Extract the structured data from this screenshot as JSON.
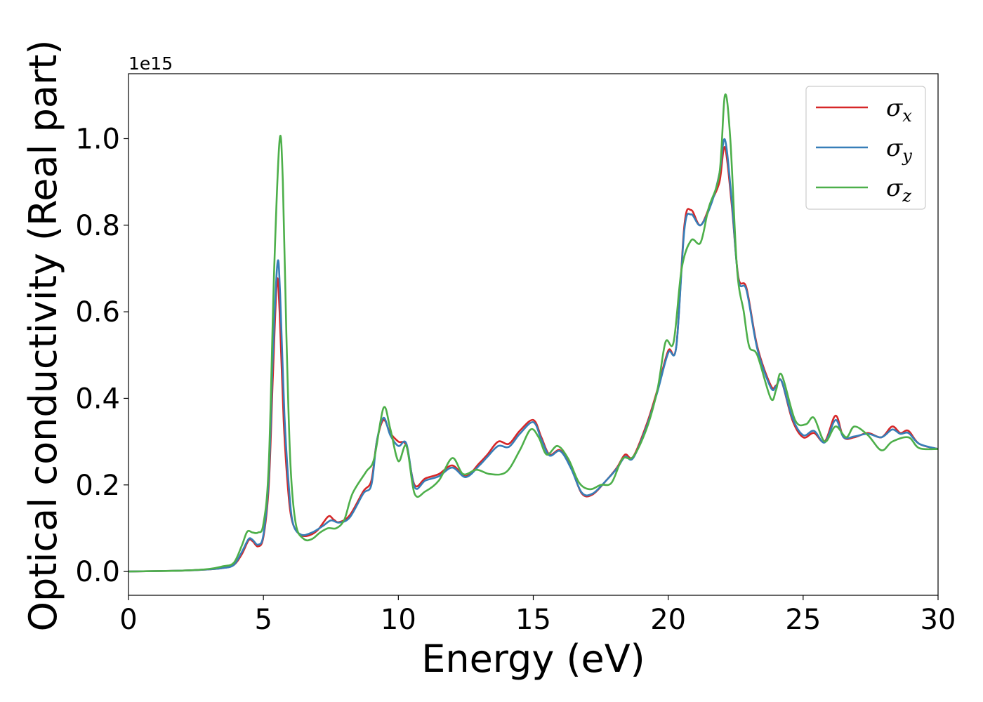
{
  "chart_data": {
    "type": "line",
    "title": "",
    "xlabel": "Energy (eV)",
    "ylabel": "Optical conductivity (Real part)",
    "y_offset_text": "1e15",
    "y_scale_factor": 1000000000000000.0,
    "xlim": [
      0,
      30
    ],
    "ylim": [
      -0.055,
      1.15
    ],
    "x_ticks": [
      0,
      5,
      10,
      15,
      20,
      25,
      30
    ],
    "x_tick_labels": [
      "0",
      "5",
      "10",
      "15",
      "20",
      "25",
      "30"
    ],
    "y_ticks": [
      0.0,
      0.2,
      0.4,
      0.6,
      0.8,
      1.0
    ],
    "y_tick_labels": [
      "0.0",
      "0.2",
      "0.4",
      "0.6",
      "0.8",
      "1.0"
    ],
    "grid": false,
    "legend_position": "top-right",
    "series": [
      {
        "name": "σx",
        "symbol": "σ",
        "subscript": "x",
        "color": "#d62728",
        "points": [
          [
            0,
            0
          ],
          [
            2.0,
            0.002
          ],
          [
            3.0,
            0.005
          ],
          [
            3.5,
            0.008
          ],
          [
            3.9,
            0.015
          ],
          [
            4.2,
            0.04
          ],
          [
            4.45,
            0.072
          ],
          [
            4.6,
            0.07
          ],
          [
            4.8,
            0.058
          ],
          [
            5.0,
            0.08
          ],
          [
            5.2,
            0.2
          ],
          [
            5.35,
            0.45
          ],
          [
            5.5,
            0.67
          ],
          [
            5.6,
            0.6
          ],
          [
            5.75,
            0.35
          ],
          [
            5.9,
            0.2
          ],
          [
            6.05,
            0.12
          ],
          [
            6.3,
            0.088
          ],
          [
            6.6,
            0.082
          ],
          [
            7.0,
            0.095
          ],
          [
            7.4,
            0.127
          ],
          [
            7.6,
            0.12
          ],
          [
            7.8,
            0.114
          ],
          [
            8.2,
            0.13
          ],
          [
            8.7,
            0.185
          ],
          [
            9.0,
            0.21
          ],
          [
            9.2,
            0.3
          ],
          [
            9.45,
            0.35
          ],
          [
            9.7,
            0.32
          ],
          [
            10.0,
            0.3
          ],
          [
            10.3,
            0.29
          ],
          [
            10.6,
            0.2
          ],
          [
            11.0,
            0.215
          ],
          [
            11.5,
            0.225
          ],
          [
            12.0,
            0.245
          ],
          [
            12.5,
            0.22
          ],
          [
            13.0,
            0.25
          ],
          [
            13.3,
            0.27
          ],
          [
            13.7,
            0.3
          ],
          [
            14.1,
            0.295
          ],
          [
            14.5,
            0.325
          ],
          [
            15.0,
            0.35
          ],
          [
            15.3,
            0.31
          ],
          [
            15.6,
            0.27
          ],
          [
            16.0,
            0.28
          ],
          [
            16.4,
            0.24
          ],
          [
            16.8,
            0.18
          ],
          [
            17.2,
            0.178
          ],
          [
            17.7,
            0.21
          ],
          [
            18.1,
            0.24
          ],
          [
            18.4,
            0.27
          ],
          [
            18.7,
            0.265
          ],
          [
            19.2,
            0.34
          ],
          [
            19.6,
            0.42
          ],
          [
            20.0,
            0.51
          ],
          [
            20.3,
            0.52
          ],
          [
            20.6,
            0.8
          ],
          [
            20.85,
            0.835
          ],
          [
            21.2,
            0.8
          ],
          [
            21.6,
            0.855
          ],
          [
            21.9,
            0.9
          ],
          [
            22.1,
            0.98
          ],
          [
            22.35,
            0.85
          ],
          [
            22.6,
            0.68
          ],
          [
            22.9,
            0.655
          ],
          [
            23.3,
            0.52
          ],
          [
            23.8,
            0.43
          ],
          [
            24.0,
            0.43
          ],
          [
            24.2,
            0.44
          ],
          [
            24.6,
            0.35
          ],
          [
            25.0,
            0.31
          ],
          [
            25.4,
            0.32
          ],
          [
            25.8,
            0.3
          ],
          [
            26.2,
            0.36
          ],
          [
            26.5,
            0.31
          ],
          [
            26.9,
            0.31
          ],
          [
            27.4,
            0.32
          ],
          [
            27.9,
            0.31
          ],
          [
            28.3,
            0.335
          ],
          [
            28.6,
            0.32
          ],
          [
            28.9,
            0.325
          ],
          [
            29.3,
            0.295
          ],
          [
            30.0,
            0.283
          ]
        ]
      },
      {
        "name": "σy",
        "symbol": "σ",
        "subscript": "y",
        "color": "#377eb8",
        "points": [
          [
            0,
            0
          ],
          [
            2.0,
            0.002
          ],
          [
            3.0,
            0.005
          ],
          [
            3.5,
            0.008
          ],
          [
            3.9,
            0.015
          ],
          [
            4.2,
            0.045
          ],
          [
            4.45,
            0.075
          ],
          [
            4.6,
            0.073
          ],
          [
            4.8,
            0.062
          ],
          [
            5.0,
            0.085
          ],
          [
            5.2,
            0.22
          ],
          [
            5.35,
            0.5
          ],
          [
            5.52,
            0.712
          ],
          [
            5.62,
            0.64
          ],
          [
            5.78,
            0.36
          ],
          [
            5.95,
            0.19
          ],
          [
            6.1,
            0.11
          ],
          [
            6.4,
            0.085
          ],
          [
            6.8,
            0.09
          ],
          [
            7.2,
            0.105
          ],
          [
            7.5,
            0.118
          ],
          [
            7.8,
            0.113
          ],
          [
            8.2,
            0.125
          ],
          [
            8.7,
            0.18
          ],
          [
            9.0,
            0.2
          ],
          [
            9.2,
            0.3
          ],
          [
            9.45,
            0.355
          ],
          [
            9.7,
            0.315
          ],
          [
            10.0,
            0.29
          ],
          [
            10.3,
            0.295
          ],
          [
            10.6,
            0.195
          ],
          [
            11.0,
            0.21
          ],
          [
            11.5,
            0.22
          ],
          [
            12.0,
            0.24
          ],
          [
            12.5,
            0.218
          ],
          [
            13.0,
            0.245
          ],
          [
            13.3,
            0.265
          ],
          [
            13.7,
            0.29
          ],
          [
            14.1,
            0.288
          ],
          [
            14.5,
            0.318
          ],
          [
            15.0,
            0.345
          ],
          [
            15.3,
            0.305
          ],
          [
            15.6,
            0.268
          ],
          [
            16.0,
            0.278
          ],
          [
            16.4,
            0.238
          ],
          [
            16.8,
            0.182
          ],
          [
            17.2,
            0.18
          ],
          [
            17.7,
            0.21
          ],
          [
            18.1,
            0.238
          ],
          [
            18.4,
            0.265
          ],
          [
            18.7,
            0.262
          ],
          [
            19.2,
            0.335
          ],
          [
            19.6,
            0.415
          ],
          [
            20.0,
            0.505
          ],
          [
            20.3,
            0.52
          ],
          [
            20.6,
            0.79
          ],
          [
            20.85,
            0.825
          ],
          [
            21.2,
            0.8
          ],
          [
            21.6,
            0.85
          ],
          [
            21.9,
            0.92
          ],
          [
            22.1,
            0.998
          ],
          [
            22.35,
            0.86
          ],
          [
            22.6,
            0.675
          ],
          [
            22.9,
            0.65
          ],
          [
            23.3,
            0.515
          ],
          [
            23.8,
            0.425
          ],
          [
            24.0,
            0.428
          ],
          [
            24.2,
            0.44
          ],
          [
            24.6,
            0.355
          ],
          [
            25.0,
            0.315
          ],
          [
            25.4,
            0.325
          ],
          [
            25.8,
            0.298
          ],
          [
            26.2,
            0.35
          ],
          [
            26.5,
            0.31
          ],
          [
            26.9,
            0.312
          ],
          [
            27.4,
            0.318
          ],
          [
            27.9,
            0.31
          ],
          [
            28.3,
            0.328
          ],
          [
            28.6,
            0.318
          ],
          [
            28.9,
            0.32
          ],
          [
            29.3,
            0.295
          ],
          [
            30.0,
            0.283
          ]
        ]
      },
      {
        "name": "σz",
        "symbol": "σ",
        "subscript": "z",
        "color": "#4daf4a",
        "points": [
          [
            0,
            0
          ],
          [
            2.0,
            0.002
          ],
          [
            3.0,
            0.006
          ],
          [
            3.5,
            0.012
          ],
          [
            3.9,
            0.02
          ],
          [
            4.2,
            0.06
          ],
          [
            4.4,
            0.092
          ],
          [
            4.6,
            0.09
          ],
          [
            4.8,
            0.09
          ],
          [
            5.0,
            0.11
          ],
          [
            5.2,
            0.25
          ],
          [
            5.4,
            0.7
          ],
          [
            5.6,
            0.997
          ],
          [
            5.72,
            0.9
          ],
          [
            5.85,
            0.55
          ],
          [
            6.0,
            0.25
          ],
          [
            6.2,
            0.11
          ],
          [
            6.5,
            0.075
          ],
          [
            6.8,
            0.075
          ],
          [
            7.1,
            0.09
          ],
          [
            7.4,
            0.1
          ],
          [
            7.7,
            0.1
          ],
          [
            8.0,
            0.12
          ],
          [
            8.3,
            0.18
          ],
          [
            8.8,
            0.23
          ],
          [
            9.1,
            0.26
          ],
          [
            9.45,
            0.378
          ],
          [
            9.7,
            0.33
          ],
          [
            10.0,
            0.255
          ],
          [
            10.3,
            0.29
          ],
          [
            10.6,
            0.18
          ],
          [
            11.0,
            0.185
          ],
          [
            11.5,
            0.21
          ],
          [
            12.0,
            0.262
          ],
          [
            12.4,
            0.225
          ],
          [
            12.9,
            0.235
          ],
          [
            13.4,
            0.225
          ],
          [
            14.0,
            0.23
          ],
          [
            14.5,
            0.28
          ],
          [
            14.9,
            0.328
          ],
          [
            15.2,
            0.31
          ],
          [
            15.5,
            0.27
          ],
          [
            15.9,
            0.29
          ],
          [
            16.3,
            0.26
          ],
          [
            16.7,
            0.205
          ],
          [
            17.1,
            0.19
          ],
          [
            17.5,
            0.2
          ],
          [
            17.9,
            0.205
          ],
          [
            18.3,
            0.26
          ],
          [
            18.7,
            0.265
          ],
          [
            19.2,
            0.33
          ],
          [
            19.6,
            0.42
          ],
          [
            19.9,
            0.53
          ],
          [
            20.2,
            0.53
          ],
          [
            20.5,
            0.7
          ],
          [
            20.85,
            0.765
          ],
          [
            21.2,
            0.76
          ],
          [
            21.5,
            0.84
          ],
          [
            21.9,
            0.92
          ],
          [
            22.1,
            1.1
          ],
          [
            22.3,
            1.0
          ],
          [
            22.55,
            0.7
          ],
          [
            22.8,
            0.6
          ],
          [
            23.0,
            0.52
          ],
          [
            23.3,
            0.5
          ],
          [
            23.8,
            0.4
          ],
          [
            24.0,
            0.42
          ],
          [
            24.2,
            0.455
          ],
          [
            24.7,
            0.35
          ],
          [
            25.1,
            0.34
          ],
          [
            25.4,
            0.355
          ],
          [
            25.8,
            0.3
          ],
          [
            26.2,
            0.335
          ],
          [
            26.6,
            0.31
          ],
          [
            26.9,
            0.335
          ],
          [
            27.4,
            0.315
          ],
          [
            27.9,
            0.28
          ],
          [
            28.3,
            0.3
          ],
          [
            28.9,
            0.31
          ],
          [
            29.3,
            0.285
          ],
          [
            30.0,
            0.283
          ]
        ]
      }
    ]
  }
}
